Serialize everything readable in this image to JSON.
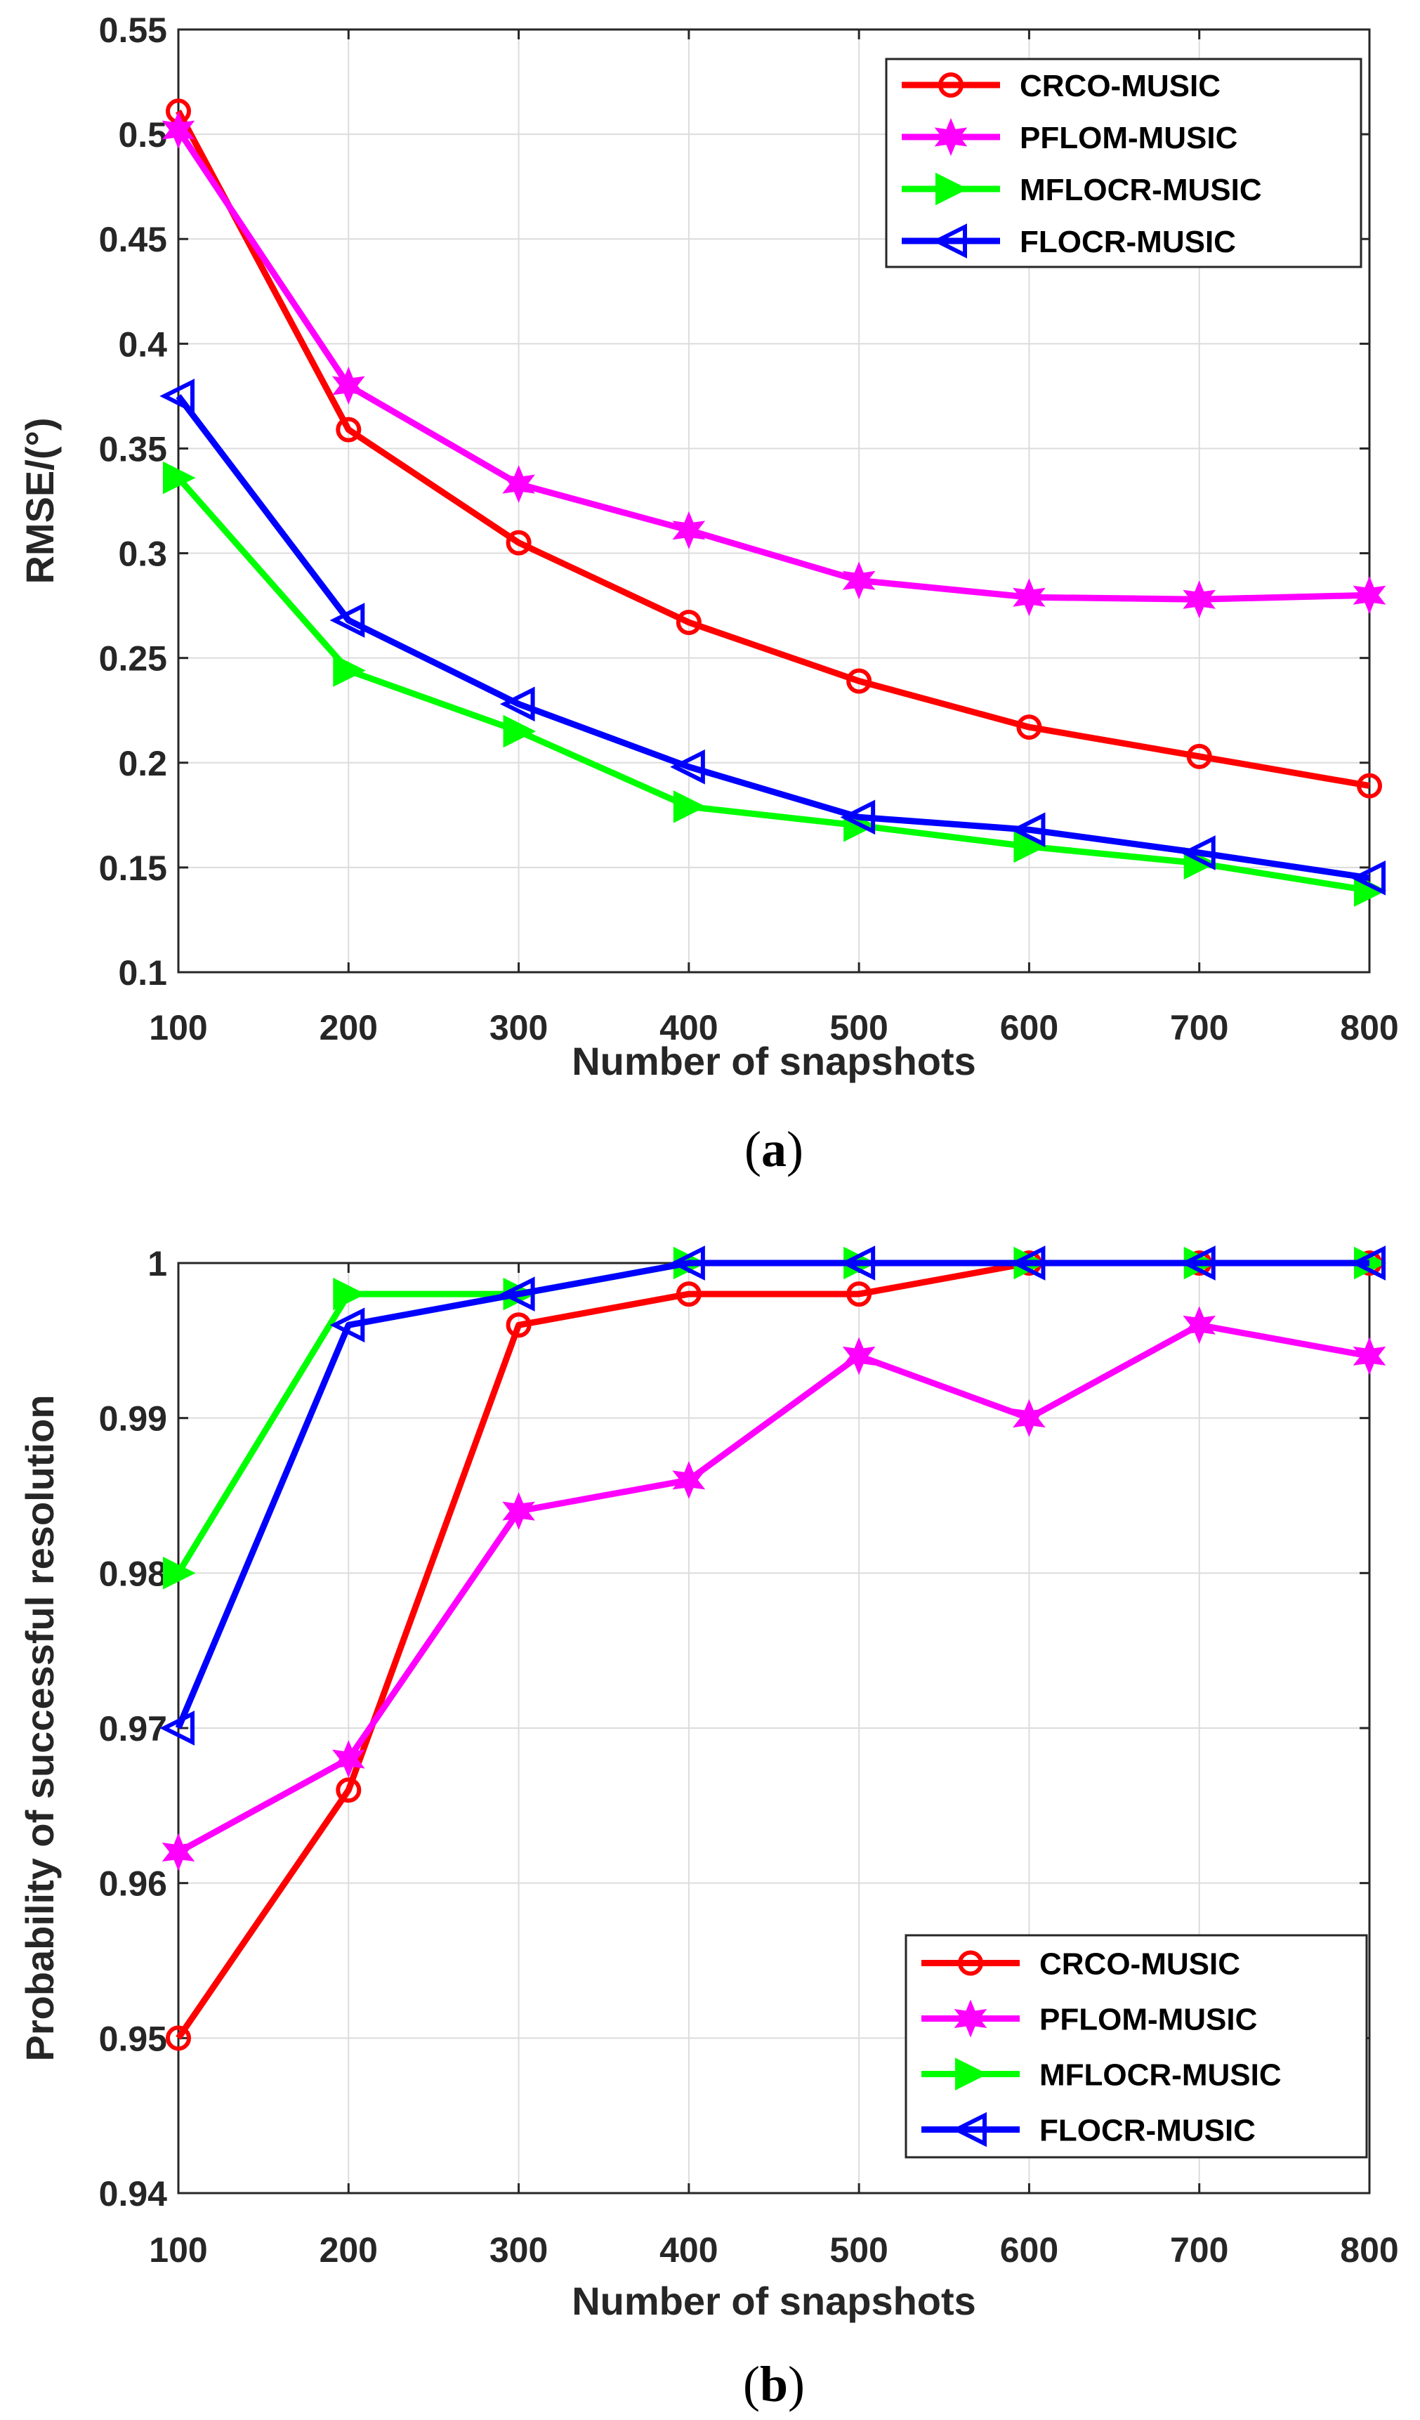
{
  "chart_data": [
    {
      "type": "line",
      "caption_open": "(",
      "caption_letter": "a",
      "caption_close": ")",
      "title": "",
      "xlabel": "Number of snapshots",
      "ylabel": "RMSE/(°)",
      "x": [
        100,
        200,
        300,
        400,
        500,
        600,
        700,
        800
      ],
      "xlim": [
        100,
        800
      ],
      "ylim": [
        0.1,
        0.55
      ],
      "xticks": [
        100,
        200,
        300,
        400,
        500,
        600,
        700,
        800
      ],
      "xtick_labels": [
        "100",
        "200",
        "300",
        "400",
        "500",
        "600",
        "700",
        "800"
      ],
      "yticks": [
        0.1,
        0.15,
        0.2,
        0.25,
        0.3,
        0.35,
        0.4,
        0.45,
        0.5,
        0.55
      ],
      "ytick_labels": [
        "0.1",
        "0.15",
        "0.2",
        "0.25",
        "0.3",
        "0.35",
        "0.4",
        "0.45",
        "0.5",
        "0.55"
      ],
      "grid": true,
      "legend_position": "top-right",
      "series": [
        {
          "name": "CRCO-MUSIC",
          "color": "#ff0000",
          "marker": "circle",
          "values": [
            0.511,
            0.359,
            0.305,
            0.267,
            0.239,
            0.217,
            0.203,
            0.189
          ]
        },
        {
          "name": "PFLOM-MUSIC",
          "color": "#ff00ff",
          "marker": "star",
          "values": [
            0.502,
            0.38,
            0.333,
            0.311,
            0.287,
            0.279,
            0.278,
            0.28
          ]
        },
        {
          "name": "MFLOCR-MUSIC",
          "color": "#00ff00",
          "marker": "triangle-right",
          "values": [
            0.336,
            0.244,
            0.215,
            0.179,
            0.17,
            0.16,
            0.152,
            0.139
          ]
        },
        {
          "name": "FLOCR-MUSIC",
          "color": "#0000ff",
          "marker": "triangle-left",
          "values": [
            0.375,
            0.268,
            0.228,
            0.198,
            0.174,
            0.168,
            0.157,
            0.145
          ]
        }
      ]
    },
    {
      "type": "line",
      "caption_open": "(",
      "caption_letter": "b",
      "caption_close": ")",
      "title": "",
      "xlabel": "Number of snapshots",
      "ylabel": "Probability of successful resolution",
      "x": [
        100,
        200,
        300,
        400,
        500,
        600,
        700,
        800
      ],
      "xlim": [
        100,
        800
      ],
      "ylim": [
        0.94,
        1.0
      ],
      "xticks": [
        100,
        200,
        300,
        400,
        500,
        600,
        700,
        800
      ],
      "xtick_labels": [
        "100",
        "200",
        "300",
        "400",
        "500",
        "600",
        "700",
        "800"
      ],
      "yticks": [
        0.94,
        0.95,
        0.96,
        0.97,
        0.98,
        0.99,
        1.0
      ],
      "ytick_labels": [
        "0.94",
        "0.95",
        "0.96",
        "0.97",
        "0.98",
        "0.99",
        "1"
      ],
      "grid": true,
      "legend_position": "bottom-right",
      "series": [
        {
          "name": "CRCO-MUSIC",
          "color": "#ff0000",
          "marker": "circle",
          "values": [
            0.95,
            0.966,
            0.996,
            0.998,
            0.998,
            1.0,
            1.0,
            1.0
          ]
        },
        {
          "name": "PFLOM-MUSIC",
          "color": "#ff00ff",
          "marker": "star",
          "values": [
            0.962,
            0.968,
            0.984,
            0.986,
            0.994,
            0.99,
            0.996,
            0.994
          ]
        },
        {
          "name": "MFLOCR-MUSIC",
          "color": "#00ff00",
          "marker": "triangle-right",
          "values": [
            0.98,
            0.998,
            0.998,
            1.0,
            1.0,
            1.0,
            1.0,
            1.0
          ]
        },
        {
          "name": "FLOCR-MUSIC",
          "color": "#0000ff",
          "marker": "triangle-left",
          "values": [
            0.97,
            0.996,
            0.998,
            1.0,
            1.0,
            1.0,
            1.0,
            1.0
          ]
        }
      ]
    }
  ]
}
